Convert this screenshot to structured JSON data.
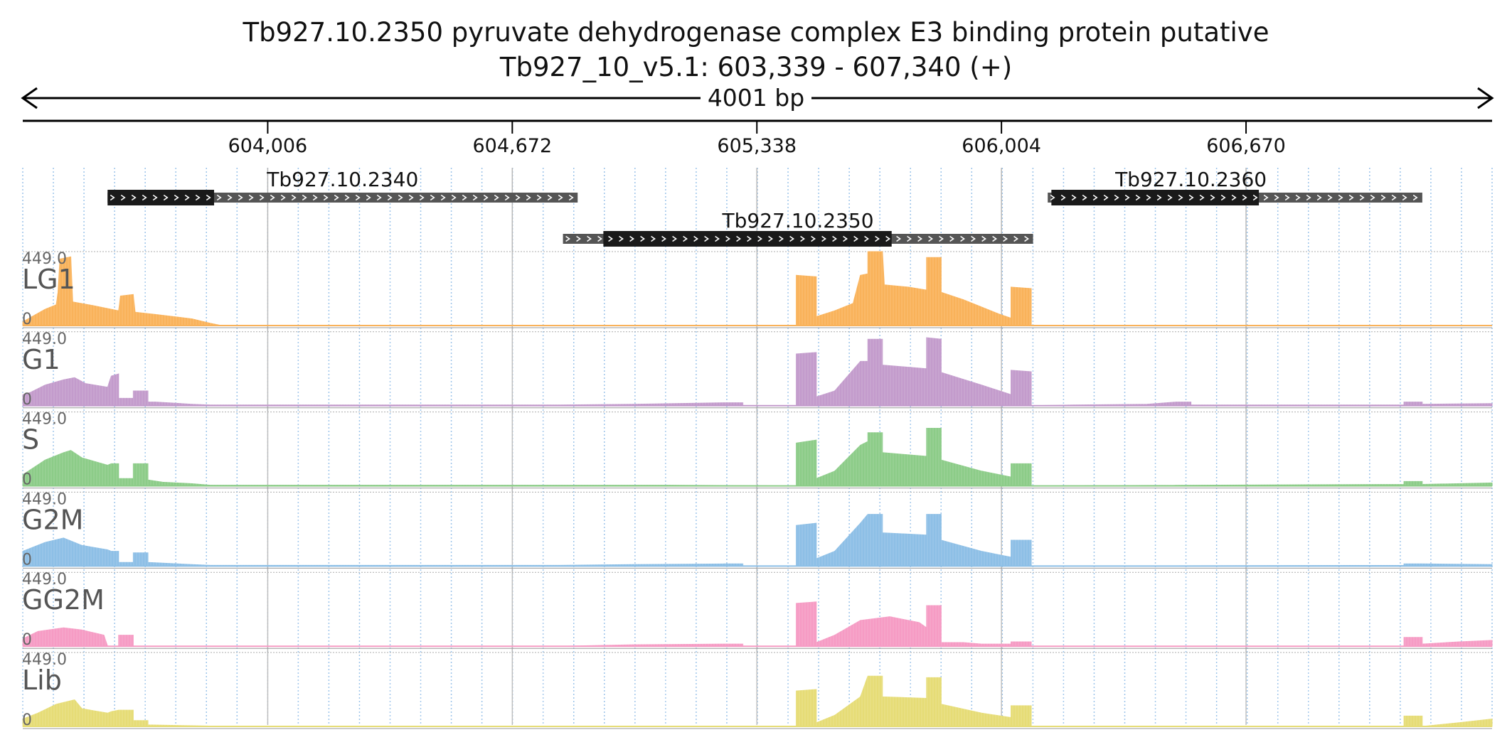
{
  "header": {
    "title": "Tb927.10.2350  pyruvate dehydrogenase complex E3 binding protein  putative",
    "locus": "Tb927_10_v5.1: 603,339 - 607,340 (+)",
    "span_label": "4001 bp"
  },
  "chart_data": {
    "type": "area",
    "x_range": [
      603339,
      607340
    ],
    "ticks": [
      {
        "pos": 604006,
        "label": "604,006"
      },
      {
        "pos": 604672,
        "label": "604,672"
      },
      {
        "pos": 605338,
        "label": "605,338"
      },
      {
        "pos": 606004,
        "label": "606,004"
      },
      {
        "pos": 606670,
        "label": "606,670"
      }
    ],
    "genes": [
      {
        "name": "Tb927.10.2340",
        "start": 603570,
        "end": 604850,
        "cds": [
          603570,
          603860
        ],
        "row": 0,
        "label_pos": 604210
      },
      {
        "name": "Tb927.10.2350",
        "start": 604810,
        "end": 606090,
        "cds": [
          604920,
          605705
        ],
        "row": 1,
        "label_pos": 605450
      },
      {
        "name": "Tb927.10.2360",
        "start": 606130,
        "end": 607150,
        "cds": [
          606140,
          606705
        ],
        "row": 0,
        "label_pos": 606520
      }
    ],
    "track_max_label": "449.0",
    "track_min_label": "0",
    "tracks": [
      {
        "name": "LG1",
        "color": "#f9b25a",
        "profile": [
          [
            603339,
            0.05
          ],
          [
            603400,
            0.22
          ],
          [
            603430,
            0.28
          ],
          [
            603435,
            0.45
          ],
          [
            603440,
            0.9
          ],
          [
            603470,
            0.93
          ],
          [
            603475,
            0.32
          ],
          [
            603530,
            0.27
          ],
          [
            603600,
            0.2
          ],
          [
            603605,
            0.4
          ],
          [
            603640,
            0.42
          ],
          [
            603645,
            0.18
          ],
          [
            603700,
            0.15
          ],
          [
            603800,
            0.09
          ],
          [
            603850,
            0.03
          ],
          [
            603880,
            0
          ],
          [
            605445,
            0
          ],
          [
            605445,
            0.68
          ],
          [
            605500,
            0.66
          ],
          [
            605500,
            0.12
          ],
          [
            605550,
            0.2
          ],
          [
            605600,
            0.3
          ],
          [
            605620,
            0.68
          ],
          [
            605640,
            0.7
          ],
          [
            605640,
            1.0
          ],
          [
            605680,
            1.0
          ],
          [
            605685,
            0.55
          ],
          [
            605750,
            0.52
          ],
          [
            605800,
            0.48
          ],
          [
            605800,
            0.92
          ],
          [
            605840,
            0.92
          ],
          [
            605840,
            0.45
          ],
          [
            605900,
            0.35
          ],
          [
            605950,
            0.25
          ],
          [
            606000,
            0.15
          ],
          [
            606030,
            0.1
          ],
          [
            606030,
            0.52
          ],
          [
            606085,
            0.5
          ],
          [
            606085,
            0
          ],
          [
            607340,
            0
          ]
        ]
      },
      {
        "name": "G1",
        "color": "#c39bcc",
        "profile": [
          [
            603339,
            0.15
          ],
          [
            603360,
            0.18
          ],
          [
            603400,
            0.28
          ],
          [
            603450,
            0.35
          ],
          [
            603480,
            0.38
          ],
          [
            603510,
            0.3
          ],
          [
            603570,
            0.25
          ],
          [
            603580,
            0.4
          ],
          [
            603600,
            0.43
          ],
          [
            603600,
            0.1
          ],
          [
            603640,
            0.1
          ],
          [
            603640,
            0.2
          ],
          [
            603680,
            0.2
          ],
          [
            603680,
            0.05
          ],
          [
            603700,
            0.05
          ],
          [
            603800,
            0.02
          ],
          [
            603850,
            0.01
          ],
          [
            604800,
            0.01
          ],
          [
            605000,
            0.02
          ],
          [
            605250,
            0.04
          ],
          [
            605300,
            0.04
          ],
          [
            605300,
            0
          ],
          [
            605445,
            0
          ],
          [
            605445,
            0.7
          ],
          [
            605500,
            0.72
          ],
          [
            605500,
            0.12
          ],
          [
            605550,
            0.2
          ],
          [
            605620,
            0.6
          ],
          [
            605640,
            0.6
          ],
          [
            605640,
            0.9
          ],
          [
            605680,
            0.9
          ],
          [
            605680,
            0.55
          ],
          [
            605800,
            0.5
          ],
          [
            605800,
            0.92
          ],
          [
            605840,
            0.9
          ],
          [
            605840,
            0.45
          ],
          [
            605950,
            0.28
          ],
          [
            606030,
            0.15
          ],
          [
            606030,
            0.48
          ],
          [
            606085,
            0.46
          ],
          [
            606085,
            0
          ],
          [
            606200,
            0.01
          ],
          [
            606400,
            0.02
          ],
          [
            606480,
            0.05
          ],
          [
            606520,
            0.05
          ],
          [
            606520,
            0.01
          ],
          [
            607100,
            0.01
          ],
          [
            607100,
            0.05
          ],
          [
            607150,
            0.05
          ],
          [
            607150,
            0.02
          ],
          [
            607340,
            0.03
          ]
        ]
      },
      {
        "name": "S",
        "color": "#8ccc88",
        "profile": [
          [
            603339,
            0.15
          ],
          [
            603400,
            0.35
          ],
          [
            603450,
            0.45
          ],
          [
            603470,
            0.48
          ],
          [
            603500,
            0.38
          ],
          [
            603570,
            0.28
          ],
          [
            603580,
            0.3
          ],
          [
            603600,
            0.3
          ],
          [
            603600,
            0.1
          ],
          [
            603640,
            0.1
          ],
          [
            603640,
            0.3
          ],
          [
            603680,
            0.3
          ],
          [
            603680,
            0.08
          ],
          [
            603720,
            0.05
          ],
          [
            603800,
            0.03
          ],
          [
            603850,
            0.01
          ],
          [
            604800,
            0.01
          ],
          [
            605100,
            0.01
          ],
          [
            605445,
            0
          ],
          [
            605445,
            0.58
          ],
          [
            605500,
            0.62
          ],
          [
            605500,
            0.1
          ],
          [
            605550,
            0.2
          ],
          [
            605620,
            0.55
          ],
          [
            605640,
            0.6
          ],
          [
            605640,
            0.72
          ],
          [
            605680,
            0.72
          ],
          [
            605680,
            0.45
          ],
          [
            605800,
            0.4
          ],
          [
            605800,
            0.78
          ],
          [
            605840,
            0.78
          ],
          [
            605840,
            0.35
          ],
          [
            605950,
            0.2
          ],
          [
            606030,
            0.12
          ],
          [
            606030,
            0.3
          ],
          [
            606085,
            0.3
          ],
          [
            606085,
            0
          ],
          [
            607100,
            0.02
          ],
          [
            607100,
            0.06
          ],
          [
            607150,
            0.06
          ],
          [
            607150,
            0.02
          ],
          [
            607340,
            0.04
          ]
        ]
      },
      {
        "name": "G2M",
        "color": "#8dbfe6",
        "profile": [
          [
            603339,
            0.2
          ],
          [
            603400,
            0.32
          ],
          [
            603450,
            0.38
          ],
          [
            603500,
            0.28
          ],
          [
            603570,
            0.22
          ],
          [
            603580,
            0.2
          ],
          [
            603600,
            0.2
          ],
          [
            603600,
            0.05
          ],
          [
            603640,
            0.05
          ],
          [
            603640,
            0.18
          ],
          [
            603680,
            0.18
          ],
          [
            603680,
            0.05
          ],
          [
            603800,
            0.02
          ],
          [
            603850,
            0.01
          ],
          [
            604800,
            0.01
          ],
          [
            605000,
            0.02
          ],
          [
            605250,
            0.03
          ],
          [
            605300,
            0.03
          ],
          [
            605300,
            0
          ],
          [
            605445,
            0
          ],
          [
            605445,
            0.55
          ],
          [
            605500,
            0.58
          ],
          [
            605500,
            0.1
          ],
          [
            605550,
            0.2
          ],
          [
            605620,
            0.58
          ],
          [
            605640,
            0.7
          ],
          [
            605680,
            0.7
          ],
          [
            605680,
            0.45
          ],
          [
            605800,
            0.42
          ],
          [
            605800,
            0.7
          ],
          [
            605840,
            0.7
          ],
          [
            605840,
            0.35
          ],
          [
            605950,
            0.2
          ],
          [
            606030,
            0.12
          ],
          [
            606030,
            0.35
          ],
          [
            606085,
            0.35
          ],
          [
            606085,
            0
          ],
          [
            607100,
            0.01
          ],
          [
            607100,
            0.03
          ],
          [
            607150,
            0.03
          ],
          [
            607340,
            0.02
          ]
        ]
      },
      {
        "name": "GG2M",
        "color": "#f69bc4",
        "profile": [
          [
            603339,
            0.1
          ],
          [
            603380,
            0.2
          ],
          [
            603450,
            0.25
          ],
          [
            603500,
            0.22
          ],
          [
            603560,
            0.15
          ],
          [
            603570,
            0
          ],
          [
            603600,
            0
          ],
          [
            603600,
            0.15
          ],
          [
            603640,
            0.15
          ],
          [
            603640,
            0
          ],
          [
            604800,
            0
          ],
          [
            605000,
            0.02
          ],
          [
            605250,
            0.03
          ],
          [
            605300,
            0.03
          ],
          [
            605300,
            0
          ],
          [
            605445,
            0
          ],
          [
            605445,
            0.58
          ],
          [
            605500,
            0.6
          ],
          [
            605500,
            0.05
          ],
          [
            605550,
            0.15
          ],
          [
            605620,
            0.35
          ],
          [
            605700,
            0.4
          ],
          [
            605780,
            0.32
          ],
          [
            605800,
            0.25
          ],
          [
            605800,
            0.55
          ],
          [
            605840,
            0.55
          ],
          [
            605840,
            0.05
          ],
          [
            605900,
            0.05
          ],
          [
            605950,
            0.03
          ],
          [
            606030,
            0.03
          ],
          [
            606030,
            0.06
          ],
          [
            606085,
            0.06
          ],
          [
            606085,
            0
          ],
          [
            607100,
            0
          ],
          [
            607100,
            0.12
          ],
          [
            607150,
            0.12
          ],
          [
            607150,
            0.03
          ],
          [
            607250,
            0.06
          ],
          [
            607340,
            0.08
          ]
        ]
      },
      {
        "name": "Lib",
        "color": "#e6dc76",
        "profile": [
          [
            603339,
            0.1
          ],
          [
            603380,
            0.18
          ],
          [
            603430,
            0.3
          ],
          [
            603480,
            0.36
          ],
          [
            603500,
            0.24
          ],
          [
            603570,
            0.18
          ],
          [
            603580,
            0.2
          ],
          [
            603600,
            0.22
          ],
          [
            603640,
            0.22
          ],
          [
            603640,
            0.08
          ],
          [
            603680,
            0.08
          ],
          [
            603680,
            0.02
          ],
          [
            603800,
            0.01
          ],
          [
            603850,
            0.005
          ],
          [
            605445,
            0
          ],
          [
            605445,
            0.48
          ],
          [
            605500,
            0.5
          ],
          [
            605500,
            0.05
          ],
          [
            605550,
            0.15
          ],
          [
            605620,
            0.4
          ],
          [
            605640,
            0.68
          ],
          [
            605680,
            0.68
          ],
          [
            605680,
            0.4
          ],
          [
            605800,
            0.38
          ],
          [
            605800,
            0.66
          ],
          [
            605840,
            0.66
          ],
          [
            605840,
            0.3
          ],
          [
            605950,
            0.18
          ],
          [
            606030,
            0.12
          ],
          [
            606030,
            0.28
          ],
          [
            606085,
            0.28
          ],
          [
            606085,
            0
          ],
          [
            607100,
            0
          ],
          [
            607100,
            0.14
          ],
          [
            607150,
            0.14
          ],
          [
            607150,
            0
          ],
          [
            607250,
            0.05
          ],
          [
            607340,
            0.1
          ]
        ]
      }
    ]
  }
}
